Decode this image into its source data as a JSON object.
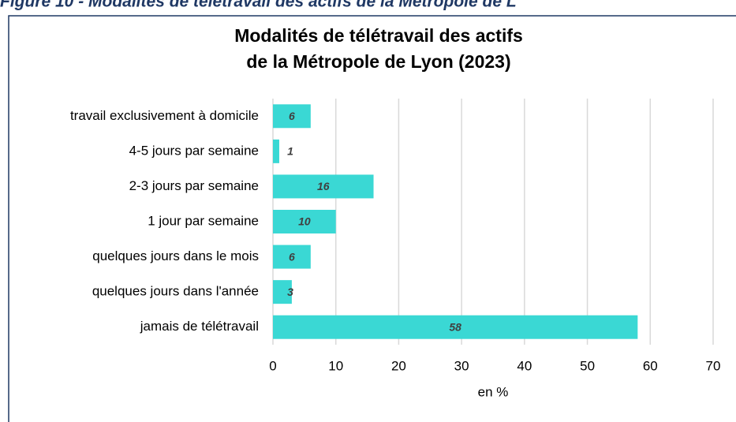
{
  "figure_caption": "Figure 10 - Modalités de télétravail des actifs de la Métropole de L",
  "chart_data": {
    "type": "hbar",
    "title": [
      "Modalités de télétravail des actifs",
      "de la Métropole de Lyon (2023)"
    ],
    "x_label": "en %",
    "categories": [
      "travail exclusivement à domicile",
      "4-5 jours par semaine",
      "2-3 jours par semaine",
      "1 jour par semaine",
      "quelques jours dans le mois",
      "quelques jours dans l'année",
      "jamais de télétravail"
    ],
    "values": [
      6,
      1,
      16,
      10,
      6,
      3,
      58
    ],
    "color": "#3ad8d4",
    "xlim": [
      0,
      70
    ],
    "xticks": [
      0,
      10,
      20,
      30,
      40,
      50,
      60,
      70
    ],
    "grid": true
  }
}
